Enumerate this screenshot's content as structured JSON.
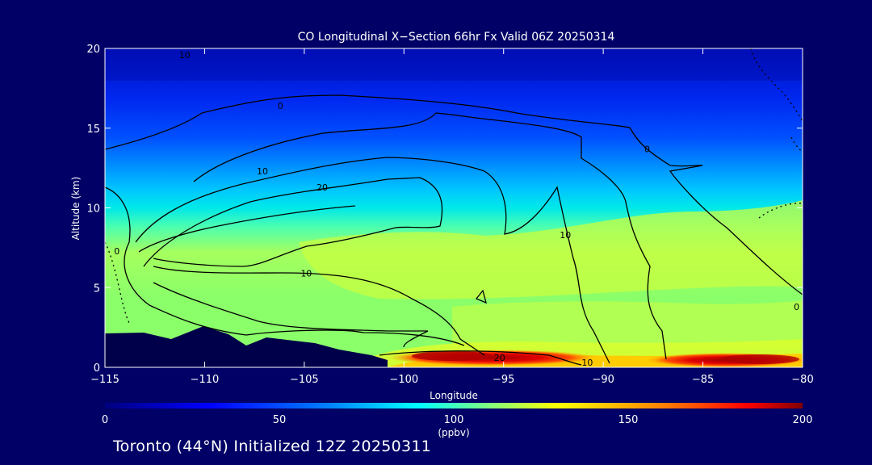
{
  "chart_data": {
    "type": "heatmap",
    "title": "CO Longitudinal X−Section 66hr  Fx Valid 06Z 20250314",
    "xlabel": "Longitude",
    "ylabel": "Altitude (km)",
    "xlim": [
      -115,
      -80
    ],
    "ylim": [
      0,
      20
    ],
    "x_ticks": [
      -115,
      -110,
      -105,
      -100,
      -95,
      -90,
      -85,
      -80
    ],
    "x_tick_labels": [
      "−115",
      "−110",
      "−105",
      "−100",
      "−95",
      "−90",
      "−85",
      "−80"
    ],
    "y_ticks": [
      0,
      5,
      10,
      15,
      20
    ],
    "y_tick_labels": [
      "0",
      "5",
      "10",
      "15",
      "20"
    ],
    "colorbar": {
      "min": 0,
      "max": 200,
      "ticks": [
        0,
        50,
        100,
        150,
        200
      ],
      "tick_labels": [
        "0",
        "50",
        "100",
        "150",
        "200"
      ],
      "unit": "(ppbv)"
    },
    "contour_labels": [
      {
        "text": "10",
        "lon": -111,
        "alt": 19.6
      },
      {
        "text": "0",
        "lon": -106.2,
        "alt": 16.4
      },
      {
        "text": "0",
        "lon": -87.8,
        "alt": 13.7
      },
      {
        "text": "10",
        "lon": -107.1,
        "alt": 12.3
      },
      {
        "text": "20",
        "lon": -104.1,
        "alt": 11.3
      },
      {
        "text": "0",
        "lon": -114.4,
        "alt": 7.3
      },
      {
        "text": "10",
        "lon": -104.9,
        "alt": 5.9
      },
      {
        "text": "10",
        "lon": -91.9,
        "alt": 8.3
      },
      {
        "text": "0",
        "lon": -80.3,
        "alt": 3.8
      },
      {
        "text": "20",
        "lon": -95.2,
        "alt": 0.6
      },
      {
        "text": "10",
        "lon": -90.8,
        "alt": 0.3
      }
    ]
  },
  "footer": {
    "text": "Toronto (44°N) Initialized 12Z 20250311"
  },
  "colors": {
    "background": "#000066",
    "terrain": "#00004a",
    "contour": "#000000",
    "text": "#ffffff"
  }
}
